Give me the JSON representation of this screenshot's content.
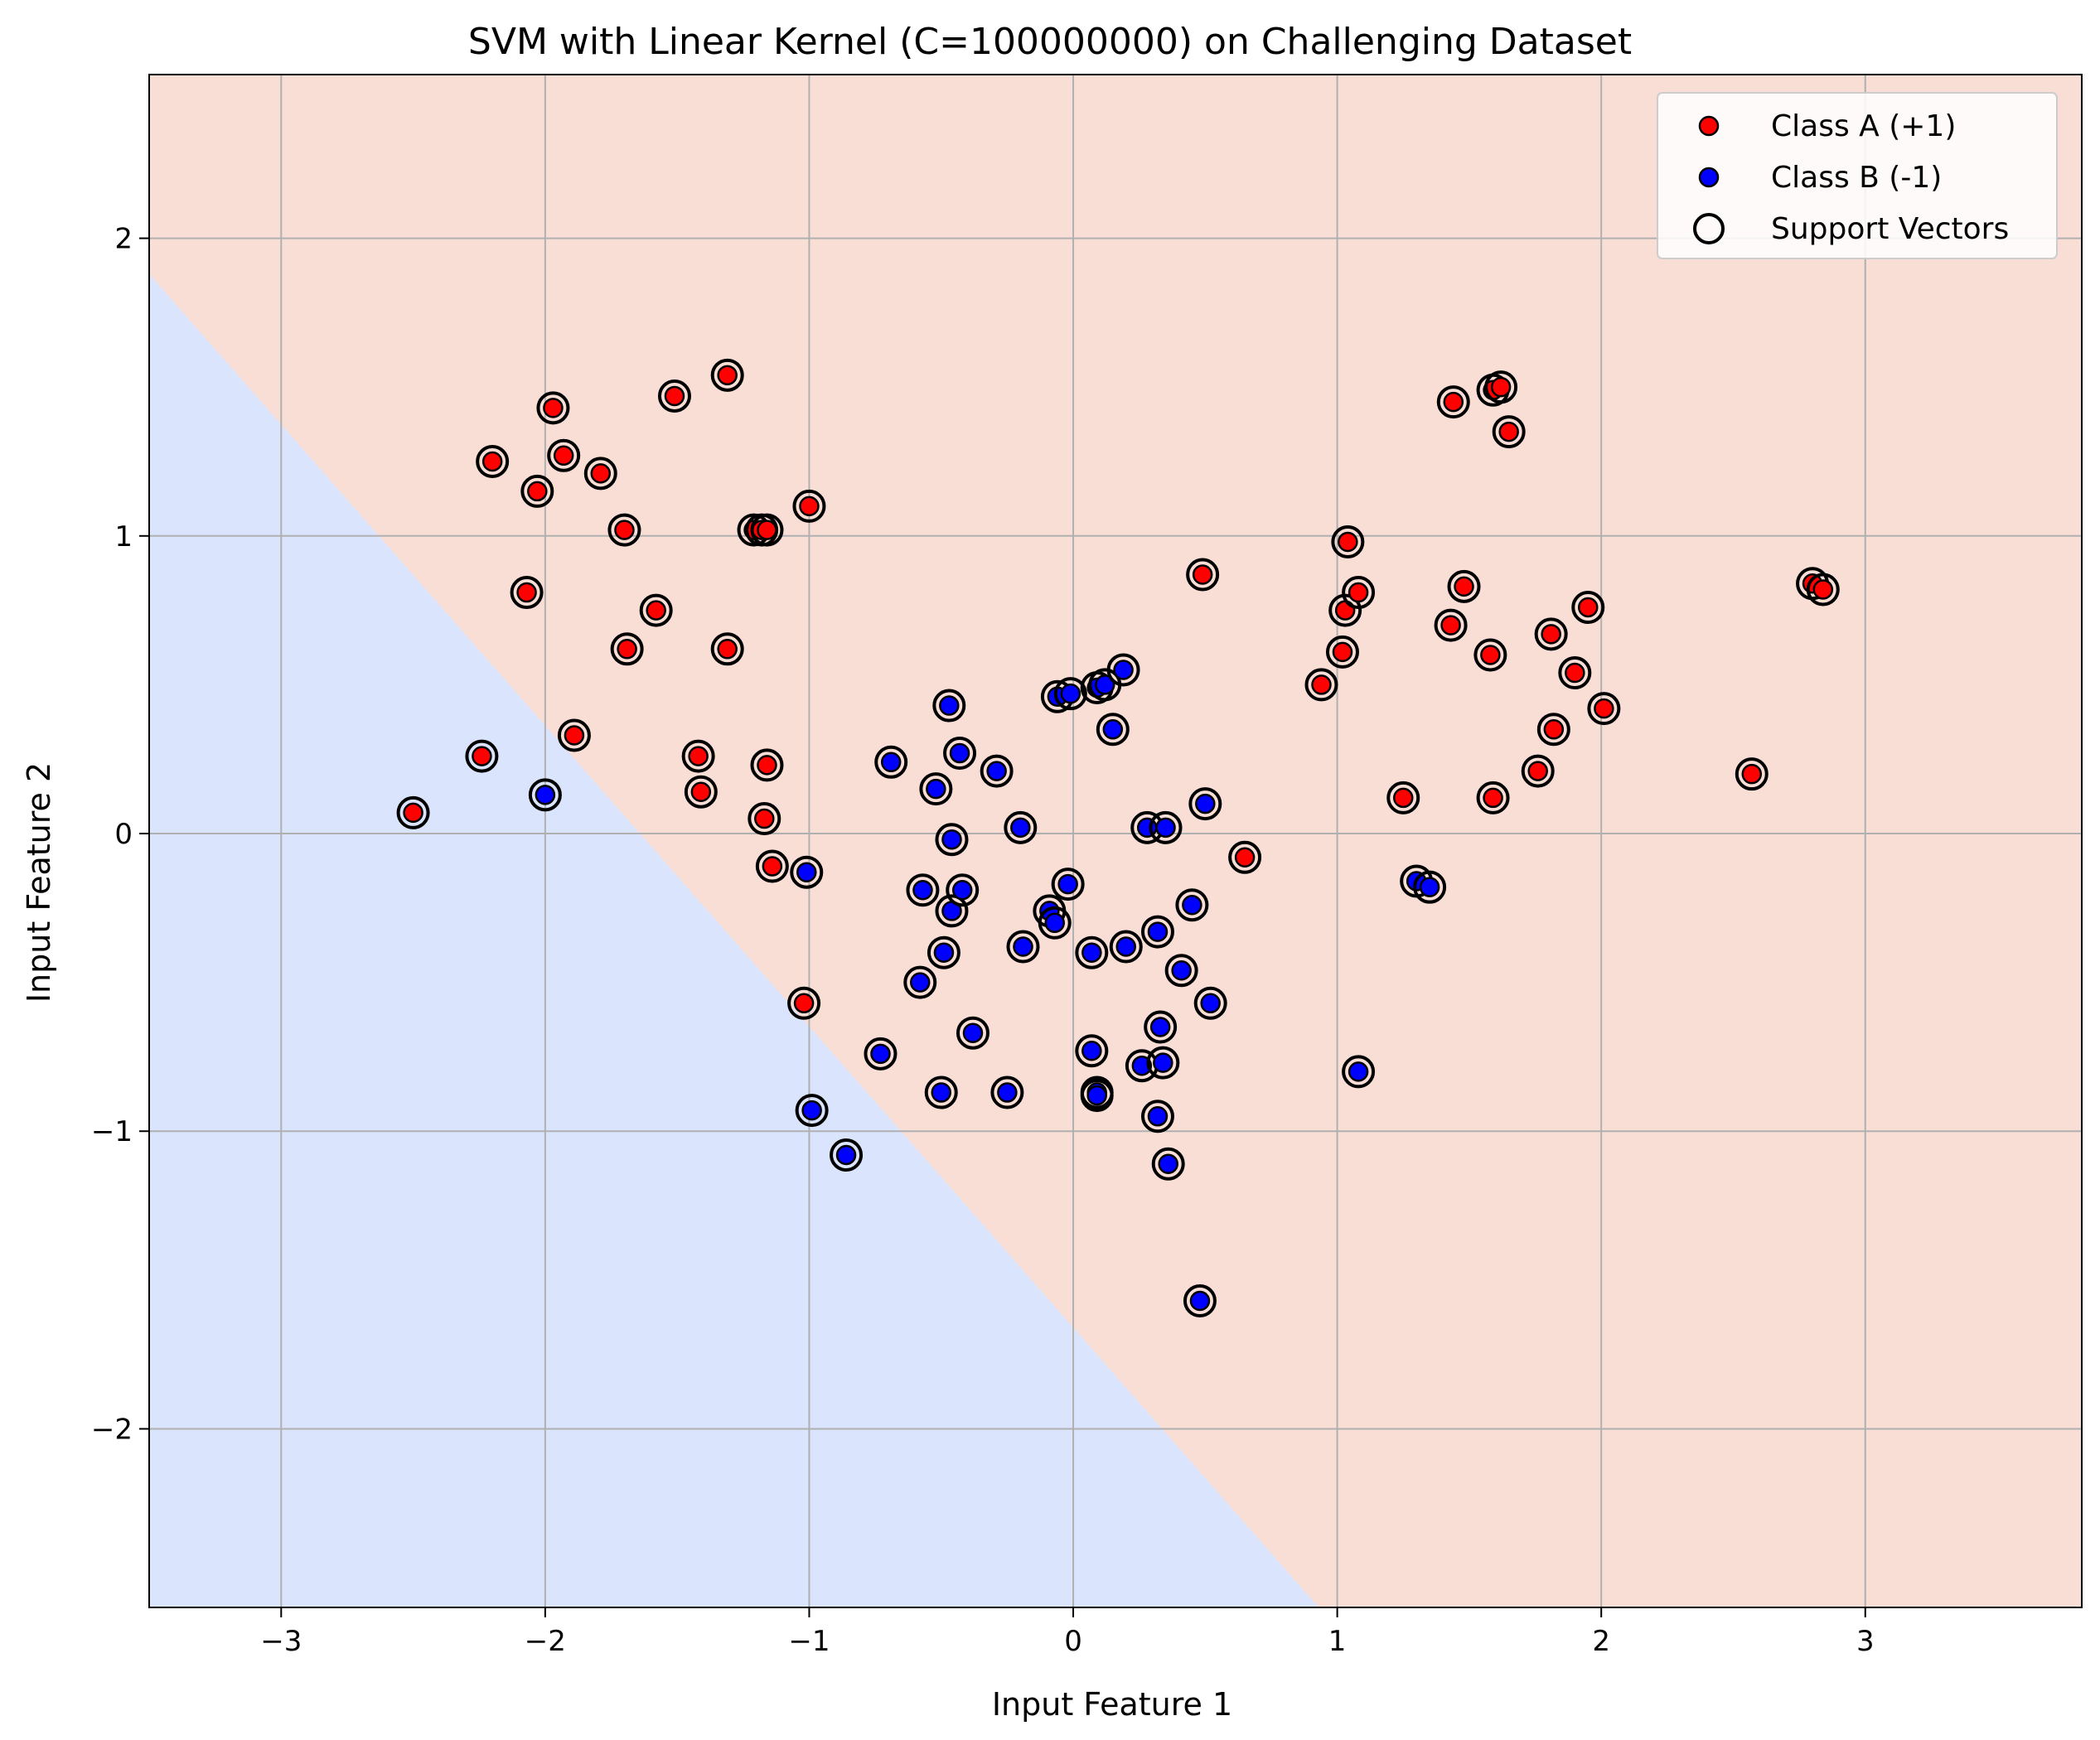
{
  "chart_data": {
    "type": "scatter",
    "title": "SVM with Linear Kernel (C=100000000) on Challenging Dataset",
    "xlabel": "Input Feature 1",
    "ylabel": "Input Feature 2",
    "xlim": [
      -3.5,
      3.82
    ],
    "ylim": [
      -2.6,
      2.55
    ],
    "xticks": [
      -3,
      -2,
      -1,
      0,
      1,
      2,
      3
    ],
    "xtick_labels": [
      "−3",
      "−2",
      "−1",
      "0",
      "1",
      "2",
      "3"
    ],
    "yticks": [
      -2,
      -1,
      0,
      1,
      2
    ],
    "ytick_labels": [
      "−2",
      "−1",
      "0",
      "1",
      "2"
    ],
    "grid": true,
    "legend_position": "top-right",
    "decision_boundary": {
      "description_points": [
        [
          -3.5,
          1.88
        ],
        [
          0.93,
          -2.6
        ]
      ],
      "negative_region_color": "#dae4fc",
      "positive_region_color": "#f9ded6"
    },
    "colors": {
      "class_a": "#ff0000",
      "class_b": "#0000ff",
      "support_vector_edge": "#000000",
      "grid": "#b0b0b0"
    },
    "legend": [
      {
        "label": "Class A (+1)",
        "marker": "red-dot"
      },
      {
        "label": "Class B (-1)",
        "marker": "blue-dot"
      },
      {
        "label": "Support Vectors",
        "marker": "hollow-circle"
      }
    ],
    "series": [
      {
        "name": "Class A (+1)",
        "points": [
          [
            -2.5,
            0.07
          ],
          [
            -2.24,
            0.26
          ],
          [
            -2.2,
            1.25
          ],
          [
            -2.07,
            0.81
          ],
          [
            -2.03,
            1.15
          ],
          [
            -1.97,
            1.43
          ],
          [
            -1.93,
            1.27
          ],
          [
            -1.89,
            0.33
          ],
          [
            -1.79,
            1.21
          ],
          [
            -1.7,
            1.02
          ],
          [
            -1.69,
            0.62
          ],
          [
            -1.58,
            0.75
          ],
          [
            -1.51,
            1.47
          ],
          [
            -1.42,
            0.26
          ],
          [
            -1.41,
            0.14
          ],
          [
            -1.31,
            1.54
          ],
          [
            -1.31,
            0.62
          ],
          [
            -1.21,
            1.02
          ],
          [
            -1.18,
            1.02
          ],
          [
            -1.16,
            1.02
          ],
          [
            -1.17,
            0.05
          ],
          [
            -1.16,
            0.23
          ],
          [
            -1.14,
            -0.11
          ],
          [
            -1.02,
            -0.57
          ],
          [
            -1.0,
            1.1
          ],
          [
            0.49,
            0.87
          ],
          [
            0.65,
            -0.08
          ],
          [
            0.94,
            0.5
          ],
          [
            1.02,
            0.61
          ],
          [
            1.03,
            0.75
          ],
          [
            1.04,
            0.98
          ],
          [
            1.08,
            0.81
          ],
          [
            1.25,
            0.12
          ],
          [
            1.43,
            0.7
          ],
          [
            1.44,
            1.45
          ],
          [
            1.48,
            0.83
          ],
          [
            1.58,
            0.6
          ],
          [
            1.59,
            1.49
          ],
          [
            1.59,
            0.12
          ],
          [
            1.62,
            1.5
          ],
          [
            1.65,
            1.35
          ],
          [
            1.76,
            0.21
          ],
          [
            1.81,
            0.67
          ],
          [
            1.82,
            0.35
          ],
          [
            1.9,
            0.54
          ],
          [
            1.95,
            0.76
          ],
          [
            2.01,
            0.42
          ],
          [
            2.57,
            0.2
          ],
          [
            2.8,
            0.84
          ],
          [
            2.84,
            0.82
          ]
        ]
      },
      {
        "name": "Class B (-1)",
        "points": [
          [
            -2.0,
            0.13
          ],
          [
            -1.01,
            -0.13
          ],
          [
            -0.99,
            -0.93
          ],
          [
            -0.86,
            -1.08
          ],
          [
            -0.73,
            -0.74
          ],
          [
            -0.69,
            0.24
          ],
          [
            -0.58,
            -0.5
          ],
          [
            -0.57,
            -0.19
          ],
          [
            -0.52,
            0.15
          ],
          [
            -0.5,
            -0.87
          ],
          [
            -0.49,
            -0.4
          ],
          [
            -0.47,
            0.43
          ],
          [
            -0.46,
            -0.02
          ],
          [
            -0.46,
            -0.26
          ],
          [
            -0.43,
            0.27
          ],
          [
            -0.42,
            -0.19
          ],
          [
            -0.38,
            -0.67
          ],
          [
            -0.29,
            0.21
          ],
          [
            -0.25,
            -0.87
          ],
          [
            -0.2,
            0.02
          ],
          [
            -0.19,
            -0.38
          ],
          [
            -0.09,
            -0.26
          ],
          [
            -0.07,
            -0.3
          ],
          [
            -0.06,
            0.46
          ],
          [
            -0.02,
            -0.17
          ],
          [
            -0.01,
            0.47
          ],
          [
            0.07,
            -0.4
          ],
          [
            0.07,
            -0.73
          ],
          [
            0.09,
            -0.87
          ],
          [
            0.09,
            -0.88
          ],
          [
            0.09,
            0.49
          ],
          [
            0.12,
            0.5
          ],
          [
            0.15,
            0.35
          ],
          [
            0.19,
            0.55
          ],
          [
            0.2,
            -0.38
          ],
          [
            0.26,
            -0.78
          ],
          [
            0.28,
            0.02
          ],
          [
            0.32,
            -0.33
          ],
          [
            0.32,
            -0.95
          ],
          [
            0.33,
            -0.65
          ],
          [
            0.34,
            -0.77
          ],
          [
            0.35,
            0.02
          ],
          [
            0.36,
            -1.11
          ],
          [
            0.41,
            -0.46
          ],
          [
            0.45,
            -0.24
          ],
          [
            0.48,
            -1.57
          ],
          [
            0.5,
            0.1
          ],
          [
            0.52,
            -0.57
          ],
          [
            1.08,
            -0.8
          ],
          [
            1.3,
            -0.16
          ],
          [
            1.35,
            -0.18
          ]
        ]
      }
    ]
  }
}
